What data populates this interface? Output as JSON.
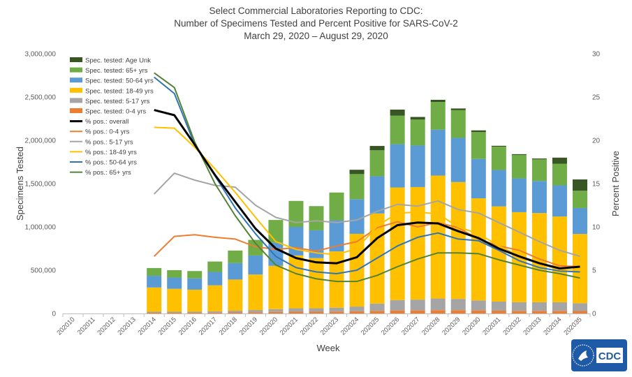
{
  "chart_data": {
    "type": "bar+line",
    "title_lines": [
      "Select Commercial Laboratories Reporting to CDC:",
      "Number of Specimens Tested and Percent Positive for SARS-CoV-2",
      "March 29, 2020 – August 29, 2020"
    ],
    "xlabel": "Week",
    "ylabel_left": "Specimens Tested",
    "ylabel_right": "Percent Positive",
    "ylim_left": [
      0,
      3000000
    ],
    "ylim_right": [
      0,
      30
    ],
    "yticks_left": [
      "0",
      "500,000",
      "1,000,000",
      "1,500,000",
      "2,000,000",
      "2,500,000",
      "3,000,000"
    ],
    "yticks_right": [
      "0",
      "5",
      "10",
      "15",
      "20",
      "25",
      "30"
    ],
    "categories": [
      "202010",
      "202011",
      "202012",
      "202013",
      "202014",
      "202015",
      "202016",
      "202017",
      "202018",
      "202019",
      "202020",
      "202021",
      "202022",
      "202023",
      "202024",
      "202025",
      "202026",
      "202027",
      "202028",
      "202029",
      "202030",
      "202031",
      "202032",
      "202033",
      "202034",
      "202035"
    ],
    "bar_series": [
      {
        "name": "Spec. tested: 0-4 yrs",
        "color": "#ed7d31",
        "values": [
          0,
          0,
          0,
          0,
          8000,
          8000,
          8000,
          10000,
          12000,
          15000,
          18000,
          20000,
          20000,
          22000,
          25000,
          30000,
          35000,
          35000,
          38000,
          38000,
          35000,
          32000,
          30000,
          30000,
          30000,
          28000
        ]
      },
      {
        "name": "Spec. tested: 5-17 yrs",
        "color": "#a5a5a5",
        "values": [
          0,
          0,
          0,
          0,
          12000,
          12000,
          12000,
          15000,
          20000,
          25000,
          32000,
          40000,
          40000,
          45000,
          55000,
          85000,
          120000,
          125000,
          135000,
          130000,
          115000,
          105000,
          100000,
          100000,
          100000,
          90000
        ]
      },
      {
        "name": "Spec. tested: 18-49 yrs",
        "color": "#ffc000",
        "values": [
          0,
          0,
          0,
          0,
          280000,
          265000,
          255000,
          300000,
          360000,
          410000,
          500000,
          610000,
          580000,
          650000,
          840000,
          1040000,
          1300000,
          1300000,
          1420000,
          1350000,
          1180000,
          1100000,
          1040000,
          1030000,
          990000,
          800000
        ]
      },
      {
        "name": "Spec. tested: 50-64 yrs",
        "color": "#5b9bd5",
        "values": [
          0,
          0,
          0,
          0,
          135000,
          130000,
          130000,
          155000,
          190000,
          220000,
          270000,
          330000,
          320000,
          360000,
          400000,
          430000,
          500000,
          480000,
          530000,
          510000,
          455000,
          420000,
          390000,
          370000,
          360000,
          300000
        ]
      },
      {
        "name": "Spec. tested: 65+ yrs",
        "color": "#70ad47",
        "values": [
          0,
          0,
          0,
          0,
          90000,
          85000,
          85000,
          120000,
          145000,
          180000,
          260000,
          300000,
          280000,
          320000,
          290000,
          300000,
          330000,
          300000,
          320000,
          320000,
          310000,
          270000,
          270000,
          250000,
          250000,
          200000
        ]
      },
      {
        "name": "Spec. tested: Age Unk",
        "color": "#375623",
        "values": [
          0,
          0,
          0,
          0,
          0,
          0,
          0,
          0,
          0,
          0,
          0,
          0,
          0,
          0,
          50000,
          50000,
          70000,
          30000,
          25000,
          20000,
          20000,
          10000,
          10000,
          10000,
          70000,
          130000
        ]
      }
    ],
    "line_series": [
      {
        "name": "% pos.: overall",
        "color": "#000000",
        "width": 3,
        "values": [
          null,
          null,
          null,
          null,
          23.5,
          22.9,
          19.5,
          16.0,
          12.9,
          9.8,
          7.5,
          6.4,
          5.9,
          5.8,
          6.5,
          8.7,
          10.2,
          10.5,
          10.4,
          9.5,
          8.7,
          7.5,
          6.6,
          5.8,
          5.2,
          5.4
        ]
      },
      {
        "name": "% pos.: 0-4 yrs",
        "color": "#ed7d31",
        "width": 2,
        "values": [
          null,
          null,
          null,
          null,
          6.6,
          8.9,
          9.1,
          8.8,
          8.6,
          7.7,
          7.4,
          7.6,
          7.2,
          7.8,
          8.3,
          9.9,
          10.6,
          10.0,
          10.5,
          9.9,
          8.6,
          7.8,
          7.3,
          6.3,
          5.5,
          5.4
        ]
      },
      {
        "name": "% pos.: 5-17 yrs",
        "color": "#a5a5a5",
        "width": 2,
        "values": [
          null,
          null,
          null,
          null,
          13.8,
          16.2,
          15.4,
          14.8,
          14.6,
          12.5,
          11.1,
          10.5,
          10.7,
          10.5,
          10.8,
          11.8,
          12.6,
          12.4,
          13.0,
          12.0,
          11.6,
          10.5,
          9.4,
          8.3,
          7.3,
          6.6
        ]
      },
      {
        "name": "% pos.: 18-49 yrs",
        "color": "#ffc000",
        "width": 2,
        "values": [
          null,
          null,
          null,
          null,
          21.5,
          21.4,
          19.2,
          16.7,
          14.0,
          11.1,
          8.3,
          7.4,
          7.0,
          6.8,
          7.5,
          10.1,
          11.6,
          11.7,
          11.5,
          10.0,
          9.2,
          7.8,
          6.7,
          5.7,
          5.1,
          5.0
        ]
      },
      {
        "name": "% pos.: 50-64 yrs",
        "color": "#2e75b6",
        "width": 2,
        "values": [
          null,
          null,
          null,
          null,
          27.3,
          25.4,
          19.5,
          15.9,
          12.2,
          9.2,
          6.6,
          5.3,
          4.8,
          4.6,
          5.0,
          6.4,
          7.8,
          8.8,
          9.3,
          8.6,
          8.4,
          7.3,
          6.1,
          5.3,
          4.9,
          4.8
        ]
      },
      {
        "name": "% pos.: 65+ yrs",
        "color": "#548235",
        "width": 2,
        "values": [
          null,
          null,
          null,
          null,
          27.8,
          26.1,
          19.8,
          15.0,
          11.3,
          8.1,
          5.6,
          4.6,
          4.0,
          3.7,
          3.7,
          4.4,
          5.4,
          6.3,
          7.0,
          7.0,
          6.9,
          6.2,
          5.6,
          5.0,
          4.6,
          4.1
        ]
      }
    ],
    "legend_position": "top-left",
    "grid": false
  },
  "logo": {
    "text": "CDC"
  }
}
